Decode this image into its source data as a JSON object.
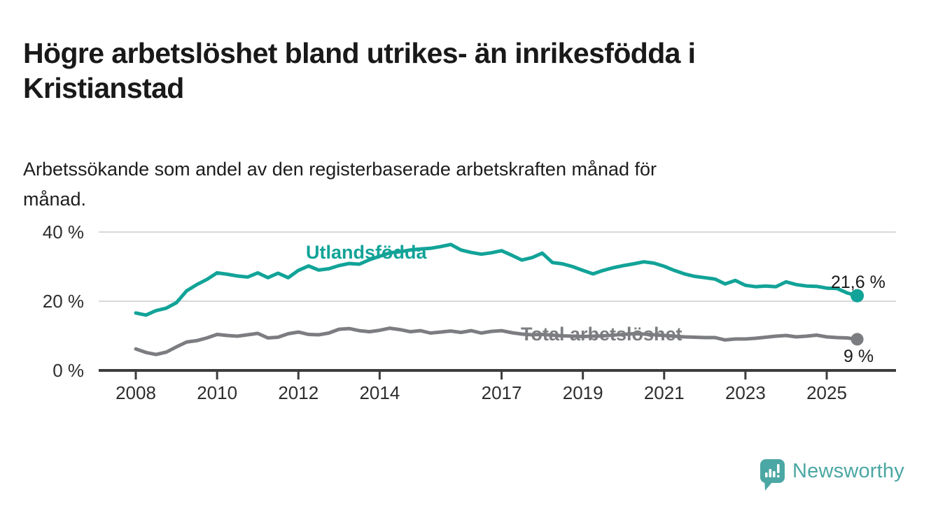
{
  "page": {
    "title": "Högre arbetslöshet bland utrikes- än inrikesfödda i\nKristianstad",
    "subtitle": "Arbetssökande som andel av den registerbaserade arbetskraften månad för\nmånad."
  },
  "chart_data": {
    "type": "line",
    "unit": "%",
    "frequency": "monthly",
    "grid": true,
    "legend_position": "inline-labels-on-lines",
    "x_axis": {
      "range_years": [
        2007.1,
        2026.7
      ],
      "ticks": [
        {
          "year": 2008,
          "label": "2008"
        },
        {
          "year": 2010,
          "label": "2010"
        },
        {
          "year": 2012,
          "label": "2012"
        },
        {
          "year": 2014,
          "label": "2014"
        },
        {
          "year": 2017,
          "label": "2017"
        },
        {
          "year": 2019,
          "label": "2019"
        },
        {
          "year": 2021,
          "label": "2021"
        },
        {
          "year": 2023,
          "label": "2023"
        },
        {
          "year": 2025,
          "label": "2025"
        }
      ]
    },
    "y_axis": {
      "range": [
        0,
        44
      ],
      "ticks": [
        {
          "value": 0,
          "label": "0 %"
        },
        {
          "value": 20,
          "label": "20 %"
        },
        {
          "value": 40,
          "label": "40 %"
        }
      ]
    },
    "series": [
      {
        "name": "Utlandsfödda",
        "color": "#12a398",
        "end_value": 21.6,
        "end_label": "21,6 %",
        "points": [
          [
            2008.0,
            16.6
          ],
          [
            2008.25,
            16.0
          ],
          [
            2008.5,
            17.3
          ],
          [
            2008.75,
            18.0
          ],
          [
            2009.0,
            19.6
          ],
          [
            2009.25,
            23.0
          ],
          [
            2009.5,
            24.8
          ],
          [
            2009.75,
            26.3
          ],
          [
            2010.0,
            28.2
          ],
          [
            2010.25,
            27.8
          ],
          [
            2010.5,
            27.3
          ],
          [
            2010.75,
            27.0
          ],
          [
            2011.0,
            28.2
          ],
          [
            2011.25,
            26.8
          ],
          [
            2011.5,
            28.1
          ],
          [
            2011.75,
            26.8
          ],
          [
            2012.0,
            28.9
          ],
          [
            2012.25,
            30.2
          ],
          [
            2012.5,
            29.0
          ],
          [
            2012.75,
            29.4
          ],
          [
            2013.0,
            30.3
          ],
          [
            2013.25,
            30.9
          ],
          [
            2013.5,
            30.7
          ],
          [
            2013.75,
            32.0
          ],
          [
            2014.0,
            33.0
          ],
          [
            2014.25,
            34.0
          ],
          [
            2014.5,
            34.3
          ],
          [
            2014.75,
            34.8
          ],
          [
            2015.0,
            35.1
          ],
          [
            2015.25,
            35.3
          ],
          [
            2015.5,
            35.8
          ],
          [
            2015.75,
            36.4
          ],
          [
            2016.0,
            34.8
          ],
          [
            2016.25,
            34.1
          ],
          [
            2016.5,
            33.6
          ],
          [
            2016.75,
            34.0
          ],
          [
            2017.0,
            34.6
          ],
          [
            2017.25,
            33.3
          ],
          [
            2017.5,
            31.9
          ],
          [
            2017.75,
            32.6
          ],
          [
            2018.0,
            33.9
          ],
          [
            2018.25,
            31.2
          ],
          [
            2018.5,
            30.8
          ],
          [
            2018.75,
            30.0
          ],
          [
            2019.0,
            28.9
          ],
          [
            2019.25,
            27.9
          ],
          [
            2019.5,
            28.9
          ],
          [
            2019.75,
            29.7
          ],
          [
            2020.0,
            30.3
          ],
          [
            2020.25,
            30.8
          ],
          [
            2020.5,
            31.4
          ],
          [
            2020.75,
            31.0
          ],
          [
            2021.0,
            30.1
          ],
          [
            2021.25,
            28.9
          ],
          [
            2021.5,
            27.9
          ],
          [
            2021.75,
            27.2
          ],
          [
            2022.0,
            26.8
          ],
          [
            2022.25,
            26.4
          ],
          [
            2022.5,
            25.0
          ],
          [
            2022.75,
            26.0
          ],
          [
            2023.0,
            24.6
          ],
          [
            2023.25,
            24.2
          ],
          [
            2023.5,
            24.4
          ],
          [
            2023.75,
            24.2
          ],
          [
            2024.0,
            25.6
          ],
          [
            2024.25,
            24.8
          ],
          [
            2024.5,
            24.4
          ],
          [
            2024.75,
            24.3
          ],
          [
            2025.0,
            23.8
          ],
          [
            2025.25,
            23.7
          ],
          [
            2025.5,
            22.4
          ],
          [
            2025.75,
            21.6
          ]
        ]
      },
      {
        "name": "Total arbetslöshet",
        "color": "#7c7d80",
        "end_value": 9.0,
        "end_label": "9 %",
        "points": [
          [
            2008.0,
            6.2
          ],
          [
            2008.25,
            5.2
          ],
          [
            2008.5,
            4.6
          ],
          [
            2008.75,
            5.3
          ],
          [
            2009.0,
            6.8
          ],
          [
            2009.25,
            8.2
          ],
          [
            2009.5,
            8.6
          ],
          [
            2009.75,
            9.4
          ],
          [
            2010.0,
            10.4
          ],
          [
            2010.25,
            10.1
          ],
          [
            2010.5,
            9.9
          ],
          [
            2010.75,
            10.3
          ],
          [
            2011.0,
            10.7
          ],
          [
            2011.25,
            9.4
          ],
          [
            2011.5,
            9.6
          ],
          [
            2011.75,
            10.6
          ],
          [
            2012.0,
            11.1
          ],
          [
            2012.25,
            10.4
          ],
          [
            2012.5,
            10.3
          ],
          [
            2012.75,
            10.8
          ],
          [
            2013.0,
            11.9
          ],
          [
            2013.25,
            12.1
          ],
          [
            2013.5,
            11.5
          ],
          [
            2013.75,
            11.2
          ],
          [
            2014.0,
            11.6
          ],
          [
            2014.25,
            12.2
          ],
          [
            2014.5,
            11.8
          ],
          [
            2014.75,
            11.2
          ],
          [
            2015.0,
            11.5
          ],
          [
            2015.25,
            10.8
          ],
          [
            2015.5,
            11.1
          ],
          [
            2015.75,
            11.4
          ],
          [
            2016.0,
            11.0
          ],
          [
            2016.25,
            11.5
          ],
          [
            2016.5,
            10.8
          ],
          [
            2016.75,
            11.3
          ],
          [
            2017.0,
            11.5
          ],
          [
            2017.25,
            10.9
          ],
          [
            2017.5,
            10.5
          ],
          [
            2017.75,
            10.3
          ],
          [
            2018.0,
            10.4
          ],
          [
            2018.25,
            10.2
          ],
          [
            2018.5,
            10.0
          ],
          [
            2018.75,
            9.9
          ],
          [
            2019.0,
            9.8
          ],
          [
            2019.25,
            9.9
          ],
          [
            2019.5,
            10.0
          ],
          [
            2019.75,
            10.2
          ],
          [
            2020.0,
            10.4
          ],
          [
            2020.25,
            10.6
          ],
          [
            2020.5,
            10.5
          ],
          [
            2020.75,
            10.3
          ],
          [
            2021.0,
            10.1
          ],
          [
            2021.25,
            9.9
          ],
          [
            2021.5,
            9.7
          ],
          [
            2021.75,
            9.6
          ],
          [
            2022.0,
            9.5
          ],
          [
            2022.25,
            9.5
          ],
          [
            2022.5,
            8.8
          ],
          [
            2022.75,
            9.1
          ],
          [
            2023.0,
            9.1
          ],
          [
            2023.25,
            9.3
          ],
          [
            2023.5,
            9.6
          ],
          [
            2023.75,
            9.9
          ],
          [
            2024.0,
            10.1
          ],
          [
            2024.25,
            9.7
          ],
          [
            2024.5,
            9.9
          ],
          [
            2024.75,
            10.2
          ],
          [
            2025.0,
            9.7
          ],
          [
            2025.25,
            9.5
          ],
          [
            2025.5,
            9.4
          ],
          [
            2025.75,
            9.0
          ]
        ]
      }
    ]
  },
  "footer": {
    "brand": "Newsworthy"
  }
}
